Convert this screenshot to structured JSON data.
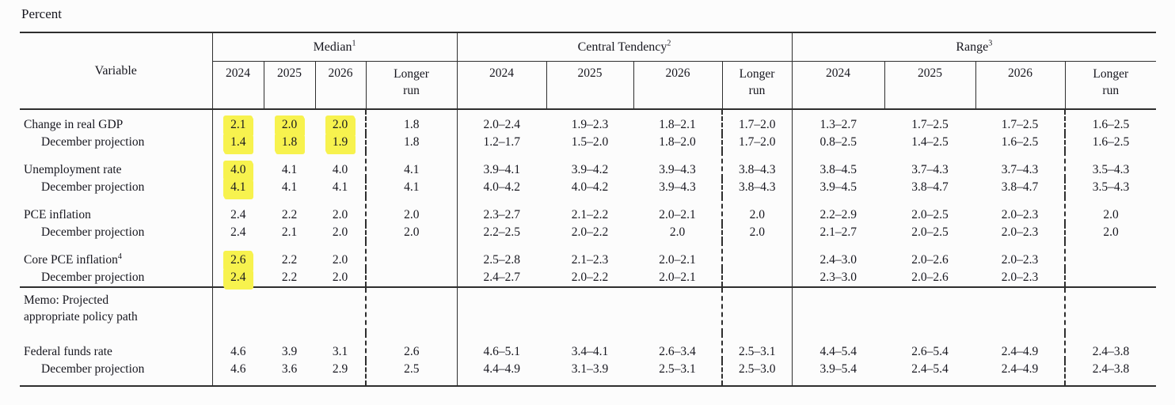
{
  "page": {
    "units_label": "Percent"
  },
  "table": {
    "variable_header": "Variable",
    "groups": [
      {
        "label": "Median",
        "sup": "1"
      },
      {
        "label": "Central Tendency",
        "sup": "2"
      },
      {
        "label": "Range",
        "sup": "3"
      }
    ],
    "year_headers": [
      "2024",
      "2025",
      "2026",
      "Longer run"
    ],
    "rows": [
      {
        "label": "Change in real GDP",
        "sup": "",
        "indent": false,
        "group_start": true,
        "memo": false,
        "median": [
          "2.1",
          "2.0",
          "2.0",
          "1.8"
        ],
        "median_hl": [
          true,
          true,
          true,
          false
        ],
        "central": [
          "2.0–2.4",
          "1.9–2.3",
          "1.8–2.1",
          "1.7–2.0"
        ],
        "range": [
          "1.3–2.7",
          "1.7–2.5",
          "1.7–2.5",
          "1.6–2.5"
        ]
      },
      {
        "label": "December projection",
        "sup": "",
        "indent": true,
        "group_start": false,
        "memo": false,
        "median": [
          "1.4",
          "1.8",
          "1.9",
          "1.8"
        ],
        "median_hl": [
          true,
          true,
          true,
          false
        ],
        "central": [
          "1.2–1.7",
          "1.5–2.0",
          "1.8–2.0",
          "1.7–2.0"
        ],
        "range": [
          "0.8–2.5",
          "1.4–2.5",
          "1.6–2.5",
          "1.6–2.5"
        ]
      },
      {
        "label": "Unemployment rate",
        "sup": "",
        "indent": false,
        "group_start": true,
        "memo": false,
        "median": [
          "4.0",
          "4.1",
          "4.0",
          "4.1"
        ],
        "median_hl": [
          true,
          false,
          false,
          false
        ],
        "central": [
          "3.9–4.1",
          "3.9–4.2",
          "3.9–4.3",
          "3.8–4.3"
        ],
        "range": [
          "3.8–4.5",
          "3.7–4.3",
          "3.7–4.3",
          "3.5–4.3"
        ]
      },
      {
        "label": "December projection",
        "sup": "",
        "indent": true,
        "group_start": false,
        "memo": false,
        "median": [
          "4.1",
          "4.1",
          "4.1",
          "4.1"
        ],
        "median_hl": [
          true,
          false,
          false,
          false
        ],
        "central": [
          "4.0–4.2",
          "4.0–4.2",
          "3.9–4.3",
          "3.8–4.3"
        ],
        "range": [
          "3.9–4.5",
          "3.8–4.7",
          "3.8–4.7",
          "3.5–4.3"
        ]
      },
      {
        "label": "PCE inflation",
        "sup": "",
        "indent": false,
        "group_start": true,
        "memo": false,
        "median": [
          "2.4",
          "2.2",
          "2.0",
          "2.0"
        ],
        "median_hl": [
          false,
          false,
          false,
          false
        ],
        "central": [
          "2.3–2.7",
          "2.1–2.2",
          "2.0–2.1",
          "2.0"
        ],
        "range": [
          "2.2–2.9",
          "2.0–2.5",
          "2.0–2.3",
          "2.0"
        ]
      },
      {
        "label": "December projection",
        "sup": "",
        "indent": true,
        "group_start": false,
        "memo": false,
        "median": [
          "2.4",
          "2.1",
          "2.0",
          "2.0"
        ],
        "median_hl": [
          false,
          false,
          false,
          false
        ],
        "central": [
          "2.2–2.5",
          "2.0–2.2",
          "2.0",
          "2.0"
        ],
        "range": [
          "2.1–2.7",
          "2.0–2.5",
          "2.0–2.3",
          "2.0"
        ]
      },
      {
        "label": "Core PCE inflation",
        "sup": "4",
        "indent": false,
        "group_start": true,
        "memo": false,
        "median": [
          "2.6",
          "2.2",
          "2.0",
          ""
        ],
        "median_hl": [
          true,
          false,
          false,
          false
        ],
        "central": [
          "2.5–2.8",
          "2.1–2.3",
          "2.0–2.1",
          ""
        ],
        "range": [
          "2.4–3.0",
          "2.0–2.6",
          "2.0–2.3",
          ""
        ]
      },
      {
        "label": "December projection",
        "sup": "",
        "indent": true,
        "group_start": false,
        "memo": false,
        "median": [
          "2.4",
          "2.2",
          "2.0",
          ""
        ],
        "median_hl": [
          true,
          false,
          false,
          false
        ],
        "central": [
          "2.4–2.7",
          "2.0–2.2",
          "2.0–2.1",
          ""
        ],
        "range": [
          "2.3–3.0",
          "2.0–2.6",
          "2.0–2.3",
          ""
        ]
      },
      {
        "label": "Memo: Projected\nappropriate policy path",
        "sup": "",
        "indent": false,
        "group_start": false,
        "memo": true,
        "median": [
          "",
          "",
          "",
          ""
        ],
        "median_hl": [
          false,
          false,
          false,
          false
        ],
        "central": [
          "",
          "",
          "",
          ""
        ],
        "range": [
          "",
          "",
          "",
          ""
        ]
      },
      {
        "label": "Federal funds rate",
        "sup": "",
        "indent": false,
        "group_start": true,
        "memo": false,
        "median": [
          "4.6",
          "3.9",
          "3.1",
          "2.6"
        ],
        "median_hl": [
          false,
          false,
          false,
          false
        ],
        "central": [
          "4.6–5.1",
          "3.4–4.1",
          "2.6–3.4",
          "2.5–3.1"
        ],
        "range": [
          "4.4–5.4",
          "2.6–5.4",
          "2.4–4.9",
          "2.4–3.8"
        ]
      },
      {
        "label": "December projection",
        "sup": "",
        "indent": true,
        "group_start": false,
        "memo": false,
        "median": [
          "4.6",
          "3.6",
          "2.9",
          "2.5"
        ],
        "median_hl": [
          false,
          false,
          false,
          false
        ],
        "central": [
          "4.4–4.9",
          "3.1–3.9",
          "2.5–3.1",
          "2.5–3.0"
        ],
        "range": [
          "3.9–5.4",
          "2.4–5.4",
          "2.4–4.9",
          "2.4–3.8"
        ]
      }
    ]
  },
  "colors": {
    "highlight": "#f7f24e",
    "rule": "#2e2e2e",
    "text": "#17171f"
  }
}
